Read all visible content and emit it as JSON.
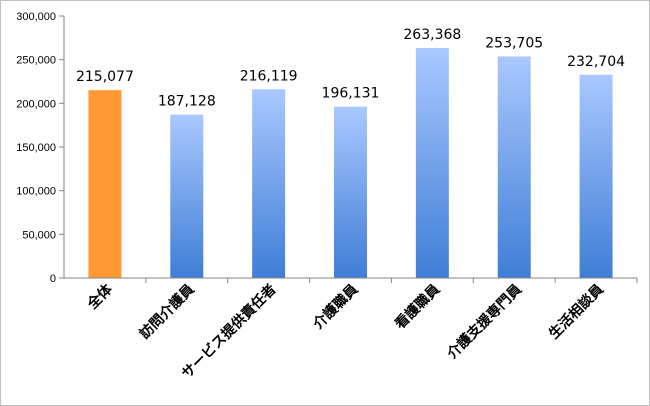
{
  "chart_data": {
    "type": "bar",
    "categories": [
      "全体",
      "訪問介護員",
      "サービス提供責任者",
      "介護職員",
      "看護職員",
      "介護支援専門員",
      "生活相談員"
    ],
    "values": [
      215077,
      187128,
      216119,
      196131,
      263368,
      253705,
      232704
    ],
    "data_labels": [
      "215,077",
      "187,128",
      "216,119",
      "196,131",
      "263,368",
      "253,705",
      "232,704"
    ],
    "ylim": [
      0,
      300000
    ],
    "yticks": [
      0,
      50000,
      100000,
      150000,
      200000,
      250000,
      300000
    ],
    "ytick_labels": [
      "0",
      "50,000",
      "100,000",
      "150,000",
      "200,000",
      "250,000",
      "300,000"
    ],
    "grid": false,
    "legend": "none",
    "title": "",
    "xlabel": "",
    "ylabel": "",
    "colors": {
      "highlight": "#FF9933",
      "bar_top": "#A9C8FF",
      "bar_bottom": "#3F7ED6",
      "axis": "#868686"
    },
    "highlight_index": 0
  }
}
